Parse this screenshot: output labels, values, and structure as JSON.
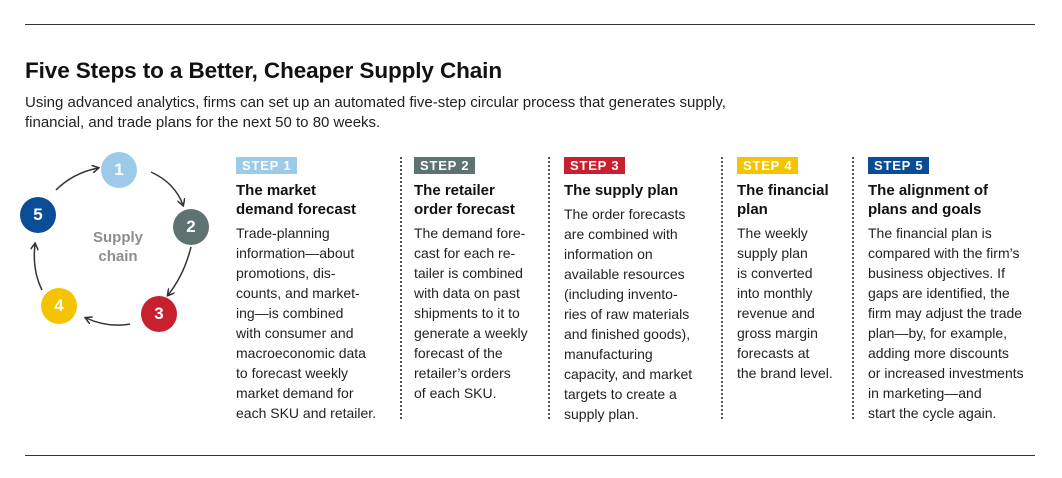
{
  "title": "Five Steps to a Better, Cheaper Supply Chain",
  "subtitle": "Using advanced analytics, firms can set up an automated five-step circular process that generates supply,\nfinancial, and trade plans for the next 50 to 80 weeks.",
  "cycle": {
    "center_label": "Supply\nchain",
    "nodes": [
      {
        "label": "1",
        "color": "#9ccbea"
      },
      {
        "label": "2",
        "color": "#5e7271"
      },
      {
        "label": "3",
        "color": "#c8202f"
      },
      {
        "label": "4",
        "color": "#f5c400"
      },
      {
        "label": "5",
        "color": "#0a4d96"
      }
    ]
  },
  "steps": [
    {
      "badge": "STEP 1",
      "color": "#9ccbea",
      "title": "The market\ndemand forecast",
      "body": "Trade-planning\ninformation—about\npromotions, dis-\ncounts, and market-\ning—is combined\nwith consumer and\nmacroeconomic data\nto forecast weekly\nmarket demand for\neach SKU and retailer."
    },
    {
      "badge": "STEP 2",
      "color": "#5e7271",
      "title": "The retailer\norder forecast",
      "body": "The demand fore-\ncast for each re-\ntailer is combined\nwith data on past\nshipments to it to\ngenerate a weekly\nforecast of the\nretailer’s orders\nof each SKU."
    },
    {
      "badge": "STEP 3",
      "color": "#c8202f",
      "title": "The supply plan",
      "body": "The order forecasts\nare combined with\ninformation on\navailable resources\n(including invento-\nries of raw materials\nand finished goods),\nmanufacturing\ncapacity, and market\ntargets to create a\nsupply plan."
    },
    {
      "badge": "STEP 4",
      "color": "#f5c400",
      "title": "The financial\nplan",
      "body": "The weekly\nsupply plan\nis converted\ninto monthly\nrevenue and\ngross margin\nforecasts at\nthe brand level."
    },
    {
      "badge": "STEP 5",
      "color": "#0a4d96",
      "title": "The alignment of\nplans and goals",
      "body": "The financial plan is\ncompared with the firm’s\nbusiness objectives. If\ngaps are identified, the\nfirm may adjust the trade\nplan—by, for example,\nadding more discounts\nor increased investments\nin marketing—and\nstart the cycle again."
    }
  ]
}
